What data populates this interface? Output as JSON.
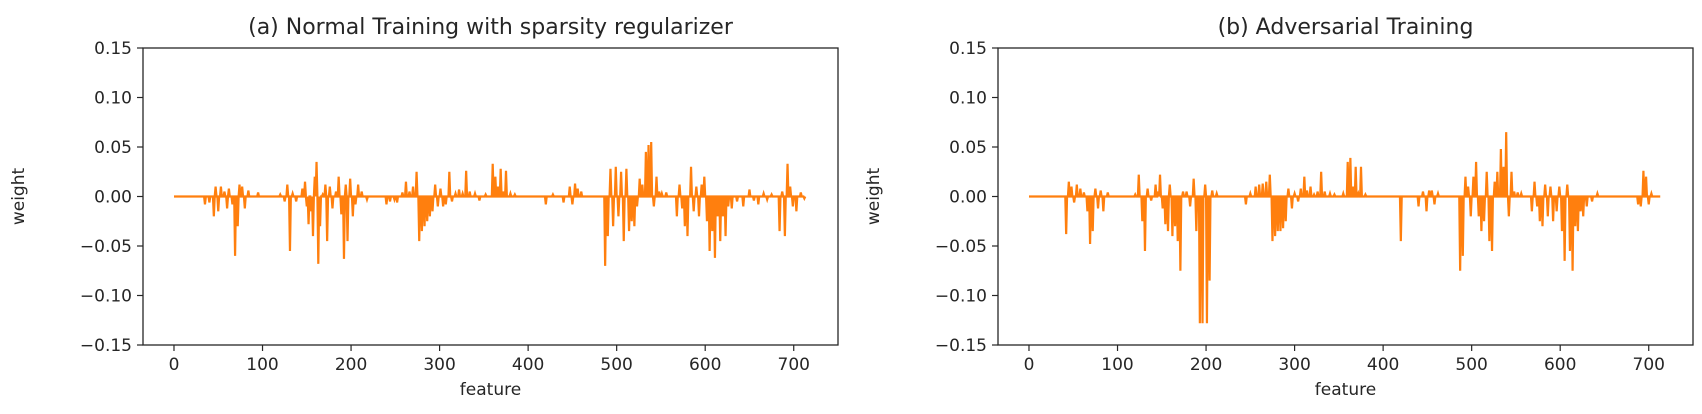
{
  "chart_data": [
    {
      "type": "line",
      "title": "(a) Normal Training with sparsity regularizer",
      "xlabel": "feature",
      "ylabel": "weight",
      "xlim": [
        -35,
        750
      ],
      "ylim": [
        -0.15,
        0.15
      ],
      "xticks": [
        0,
        100,
        200,
        300,
        400,
        500,
        600,
        700
      ],
      "yticks": [
        -0.15,
        -0.1,
        -0.05,
        0.0,
        0.05,
        0.1,
        0.15
      ],
      "ytick_labels": [
        "−0.15",
        "−0.10",
        "−0.05",
        "0.00",
        "0.05",
        "0.10",
        "0.15"
      ],
      "grid": false,
      "line_color": "#ff7f0e",
      "x_range": [
        0,
        713
      ],
      "spikes": [
        [
          35,
          -0.008
        ],
        [
          40,
          -0.006
        ],
        [
          45,
          -0.02
        ],
        [
          47,
          0.01
        ],
        [
          50,
          -0.015
        ],
        [
          53,
          0.01
        ],
        [
          57,
          0.005
        ],
        [
          60,
          -0.012
        ],
        [
          62,
          0.008
        ],
        [
          66,
          -0.008
        ],
        [
          69,
          -0.06
        ],
        [
          72,
          -0.03
        ],
        [
          74,
          0.012
        ],
        [
          77,
          0.01
        ],
        [
          80,
          -0.012
        ],
        [
          84,
          0.006
        ],
        [
          95,
          0.004
        ],
        [
          120,
          0.002
        ],
        [
          125,
          -0.005
        ],
        [
          128,
          0.012
        ],
        [
          131,
          -0.055
        ],
        [
          134,
          0.003
        ],
        [
          138,
          -0.005
        ],
        [
          145,
          0.008
        ],
        [
          148,
          0.015
        ],
        [
          150,
          -0.01
        ],
        [
          152,
          -0.028
        ],
        [
          155,
          -0.015
        ],
        [
          157,
          -0.04
        ],
        [
          159,
          0.02
        ],
        [
          161,
          0.035
        ],
        [
          163,
          -0.068
        ],
        [
          165,
          -0.03
        ],
        [
          168,
          0.002
        ],
        [
          171,
          0.012
        ],
        [
          173,
          -0.045
        ],
        [
          176,
          0.01
        ],
        [
          179,
          -0.012
        ],
        [
          183,
          0.005
        ],
        [
          186,
          0.02
        ],
        [
          189,
          -0.018
        ],
        [
          192,
          -0.063
        ],
        [
          194,
          0.012
        ],
        [
          196,
          -0.045
        ],
        [
          199,
          0.018
        ],
        [
          202,
          -0.02
        ],
        [
          205,
          -0.008
        ],
        [
          208,
          0.012
        ],
        [
          212,
          0.005
        ],
        [
          218,
          -0.003
        ],
        [
          240,
          -0.008
        ],
        [
          244,
          -0.005
        ],
        [
          249,
          -0.003
        ],
        [
          252,
          -0.006
        ],
        [
          258,
          0.004
        ],
        [
          262,
          0.015
        ],
        [
          266,
          0.005
        ],
        [
          270,
          0.01
        ],
        [
          274,
          0.025
        ],
        [
          277,
          -0.045
        ],
        [
          280,
          -0.035
        ],
        [
          283,
          -0.03
        ],
        [
          286,
          -0.025
        ],
        [
          289,
          -0.02
        ],
        [
          292,
          -0.015
        ],
        [
          295,
          0.012
        ],
        [
          298,
          -0.01
        ],
        [
          301,
          0.008
        ],
        [
          304,
          -0.01
        ],
        [
          307,
          -0.008
        ],
        [
          311,
          0.025
        ],
        [
          314,
          -0.005
        ],
        [
          318,
          0.003
        ],
        [
          322,
          0.007
        ],
        [
          326,
          0.003
        ],
        [
          330,
          0.026
        ],
        [
          334,
          0.005
        ],
        [
          340,
          0.003
        ],
        [
          345,
          -0.004
        ],
        [
          352,
          0.002
        ],
        [
          360,
          0.033
        ],
        [
          363,
          0.02
        ],
        [
          366,
          0.01
        ],
        [
          369,
          0.028
        ],
        [
          372,
          0.005
        ],
        [
          375,
          0.026
        ],
        [
          380,
          0.003
        ],
        [
          385,
          0.002
        ],
        [
          420,
          -0.008
        ],
        [
          428,
          0.002
        ],
        [
          440,
          -0.006
        ],
        [
          447,
          0.01
        ],
        [
          450,
          -0.008
        ],
        [
          453,
          0.013
        ],
        [
          456,
          0.008
        ],
        [
          460,
          0.005
        ],
        [
          487,
          -0.07
        ],
        [
          490,
          -0.04
        ],
        [
          493,
          0.028
        ],
        [
          496,
          -0.03
        ],
        [
          499,
          0.03
        ],
        [
          502,
          -0.02
        ],
        [
          505,
          0.025
        ],
        [
          508,
          -0.045
        ],
        [
          511,
          0.028
        ],
        [
          514,
          -0.035
        ],
        [
          517,
          -0.025
        ],
        [
          520,
          -0.03
        ],
        [
          523,
          -0.01
        ],
        [
          526,
          0.018
        ],
        [
          529,
          0.012
        ],
        [
          533,
          0.045
        ],
        [
          536,
          0.052
        ],
        [
          539,
          0.055
        ],
        [
          542,
          -0.01
        ],
        [
          545,
          0.02
        ],
        [
          548,
          0.005
        ],
        [
          551,
          0.003
        ],
        [
          556,
          0.004
        ],
        [
          568,
          -0.02
        ],
        [
          571,
          0.012
        ],
        [
          574,
          -0.012
        ],
        [
          577,
          -0.03
        ],
        [
          580,
          -0.04
        ],
        [
          584,
          0.03
        ],
        [
          587,
          -0.015
        ],
        [
          590,
          0.01
        ],
        [
          593,
          -0.02
        ],
        [
          596,
          0.012
        ],
        [
          599,
          0.02
        ],
        [
          602,
          -0.025
        ],
        [
          605,
          -0.055
        ],
        [
          608,
          -0.035
        ],
        [
          611,
          -0.062
        ],
        [
          614,
          -0.02
        ],
        [
          617,
          -0.045
        ],
        [
          620,
          -0.02
        ],
        [
          623,
          -0.04
        ],
        [
          626,
          -0.01
        ],
        [
          630,
          -0.012
        ],
        [
          636,
          -0.005
        ],
        [
          643,
          -0.01
        ],
        [
          650,
          0.007
        ],
        [
          655,
          -0.004
        ],
        [
          660,
          -0.008
        ],
        [
          666,
          0.003
        ],
        [
          670,
          -0.003
        ],
        [
          675,
          0.002
        ],
        [
          684,
          -0.035
        ],
        [
          687,
          0.005
        ],
        [
          690,
          -0.04
        ],
        [
          693,
          0.033
        ],
        [
          696,
          0.01
        ],
        [
          699,
          -0.01
        ],
        [
          703,
          -0.015
        ],
        [
          708,
          0.004
        ],
        [
          712,
          -0.002
        ]
      ]
    },
    {
      "type": "line",
      "title": "(b) Adversarial Training",
      "xlabel": "feature",
      "ylabel": "weight",
      "xlim": [
        -35,
        750
      ],
      "ylim": [
        -0.15,
        0.15
      ],
      "xticks": [
        0,
        100,
        200,
        300,
        400,
        500,
        600,
        700
      ],
      "yticks": [
        -0.15,
        -0.1,
        -0.05,
        0.0,
        0.05,
        0.1,
        0.15
      ],
      "ytick_labels": [
        "−0.15",
        "−0.10",
        "−0.05",
        "0.00",
        "0.05",
        "0.10",
        "0.15"
      ],
      "grid": false,
      "line_color": "#ff7f0e",
      "x_range": [
        0,
        713
      ],
      "spikes": [
        [
          42,
          -0.038
        ],
        [
          45,
          0.015
        ],
        [
          48,
          0.01
        ],
        [
          51,
          -0.006
        ],
        [
          54,
          0.012
        ],
        [
          58,
          0.008
        ],
        [
          62,
          0.004
        ],
        [
          66,
          -0.015
        ],
        [
          69,
          -0.048
        ],
        [
          72,
          -0.035
        ],
        [
          75,
          0.008
        ],
        [
          78,
          -0.012
        ],
        [
          81,
          0.006
        ],
        [
          84,
          -0.015
        ],
        [
          89,
          0.004
        ],
        [
          120,
          0.002
        ],
        [
          124,
          0.022
        ],
        [
          128,
          -0.025
        ],
        [
          131,
          -0.055
        ],
        [
          134,
          0.008
        ],
        [
          138,
          -0.004
        ],
        [
          143,
          0.012
        ],
        [
          146,
          0.005
        ],
        [
          148,
          0.022
        ],
        [
          151,
          -0.012
        ],
        [
          154,
          -0.028
        ],
        [
          157,
          -0.035
        ],
        [
          159,
          0.012
        ],
        [
          162,
          -0.04
        ],
        [
          165,
          -0.03
        ],
        [
          168,
          -0.045
        ],
        [
          171,
          -0.075
        ],
        [
          174,
          0.005
        ],
        [
          178,
          0.005
        ],
        [
          182,
          -0.01
        ],
        [
          186,
          0.018
        ],
        [
          189,
          -0.035
        ],
        [
          193,
          -0.128
        ],
        [
          196,
          -0.128
        ],
        [
          199,
          0.012
        ],
        [
          201,
          -0.128
        ],
        [
          204,
          -0.085
        ],
        [
          207,
          0.006
        ],
        [
          212,
          0.003
        ],
        [
          245,
          -0.008
        ],
        [
          250,
          0.003
        ],
        [
          256,
          0.01
        ],
        [
          260,
          0.012
        ],
        [
          264,
          0.013
        ],
        [
          268,
          0.015
        ],
        [
          272,
          0.022
        ],
        [
          275,
          -0.045
        ],
        [
          278,
          -0.04
        ],
        [
          281,
          -0.035
        ],
        [
          284,
          -0.035
        ],
        [
          287,
          -0.032
        ],
        [
          290,
          -0.025
        ],
        [
          293,
          0.008
        ],
        [
          297,
          -0.012
        ],
        [
          300,
          0.003
        ],
        [
          304,
          -0.005
        ],
        [
          307,
          0.008
        ],
        [
          311,
          0.02
        ],
        [
          314,
          0.006
        ],
        [
          318,
          0.01
        ],
        [
          322,
          0.002
        ],
        [
          326,
          0.005
        ],
        [
          330,
          0.025
        ],
        [
          334,
          0.005
        ],
        [
          340,
          0.003
        ],
        [
          345,
          0.002
        ],
        [
          355,
          0.003
        ],
        [
          360,
          0.035
        ],
        [
          363,
          0.039
        ],
        [
          366,
          0.01
        ],
        [
          369,
          0.03
        ],
        [
          372,
          0.003
        ],
        [
          375,
          0.03
        ],
        [
          380,
          0.002
        ],
        [
          420,
          -0.045
        ],
        [
          440,
          -0.01
        ],
        [
          445,
          0.005
        ],
        [
          449,
          -0.015
        ],
        [
          452,
          0.006
        ],
        [
          455,
          0.006
        ],
        [
          458,
          -0.008
        ],
        [
          462,
          0.003
        ],
        [
          487,
          -0.075
        ],
        [
          490,
          -0.06
        ],
        [
          493,
          0.02
        ],
        [
          496,
          0.01
        ],
        [
          499,
          -0.02
        ],
        [
          502,
          0.02
        ],
        [
          505,
          0.035
        ],
        [
          508,
          -0.02
        ],
        [
          511,
          -0.035
        ],
        [
          514,
          -0.025
        ],
        [
          517,
          0.025
        ],
        [
          520,
          -0.045
        ],
        [
          523,
          -0.055
        ],
        [
          526,
          0.015
        ],
        [
          529,
          0.025
        ],
        [
          533,
          0.048
        ],
        [
          536,
          0.03
        ],
        [
          539,
          0.065
        ],
        [
          542,
          -0.02
        ],
        [
          545,
          0.025
        ],
        [
          548,
          0.005
        ],
        [
          552,
          0.004
        ],
        [
          556,
          0.003
        ],
        [
          568,
          -0.015
        ],
        [
          571,
          0.015
        ],
        [
          574,
          -0.01
        ],
        [
          577,
          -0.025
        ],
        [
          580,
          -0.03
        ],
        [
          583,
          0.012
        ],
        [
          586,
          -0.02
        ],
        [
          589,
          0.01
        ],
        [
          592,
          -0.025
        ],
        [
          596,
          -0.015
        ],
        [
          599,
          0.01
        ],
        [
          602,
          -0.035
        ],
        [
          605,
          -0.065
        ],
        [
          608,
          0.012
        ],
        [
          611,
          -0.055
        ],
        [
          614,
          -0.075
        ],
        [
          617,
          -0.03
        ],
        [
          620,
          -0.035
        ],
        [
          623,
          -0.015
        ],
        [
          626,
          -0.02
        ],
        [
          630,
          -0.01
        ],
        [
          636,
          -0.005
        ],
        [
          642,
          0.003
        ],
        [
          688,
          -0.008
        ],
        [
          691,
          -0.01
        ],
        [
          694,
          0.026
        ],
        [
          697,
          0.02
        ],
        [
          700,
          -0.008
        ],
        [
          703,
          0.003
        ]
      ]
    }
  ]
}
